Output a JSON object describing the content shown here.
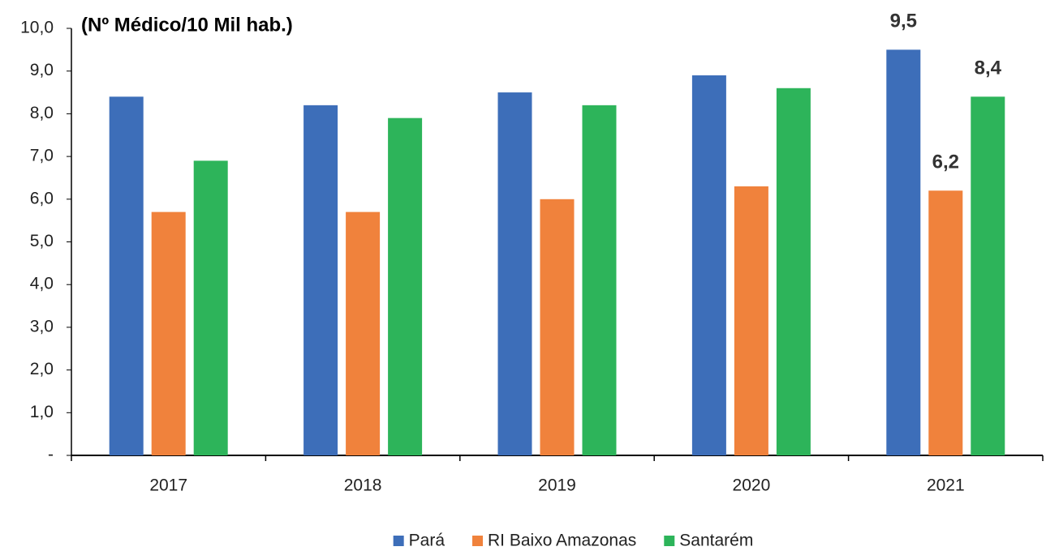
{
  "chart_data": {
    "type": "bar",
    "title": "(Nº Médico/10 Mil hab.)",
    "categories": [
      "2017",
      "2018",
      "2019",
      "2020",
      "2021"
    ],
    "series": [
      {
        "name": "Pará",
        "color": "#3d6eb9",
        "values": [
          8.4,
          8.2,
          8.5,
          8.9,
          9.5
        ],
        "value_labels": [
          null,
          null,
          null,
          null,
          "9,5"
        ]
      },
      {
        "name": "RI Baixo Amazonas",
        "color": "#f0823c",
        "values": [
          5.7,
          5.7,
          6.0,
          6.3,
          6.2
        ],
        "value_labels": [
          null,
          null,
          null,
          null,
          "6,2"
        ]
      },
      {
        "name": "Santarém",
        "color": "#2db45a",
        "values": [
          6.9,
          7.9,
          8.2,
          8.6,
          8.4
        ],
        "value_labels": [
          null,
          null,
          null,
          null,
          "8,4"
        ]
      }
    ],
    "ylim": [
      0,
      10
    ],
    "yticks": [
      {
        "value": 0,
        "label": "-"
      },
      {
        "value": 1,
        "label": "1,0"
      },
      {
        "value": 2,
        "label": "2,0"
      },
      {
        "value": 3,
        "label": "3,0"
      },
      {
        "value": 4,
        "label": "4,0"
      },
      {
        "value": 5,
        "label": "5,0"
      },
      {
        "value": 6,
        "label": "6,0"
      },
      {
        "value": 7,
        "label": "7,0"
      },
      {
        "value": 8,
        "label": "8,0"
      },
      {
        "value": 9,
        "label": "9,0"
      },
      {
        "value": 10,
        "label": "10,0"
      }
    ],
    "legend": "bottom"
  }
}
